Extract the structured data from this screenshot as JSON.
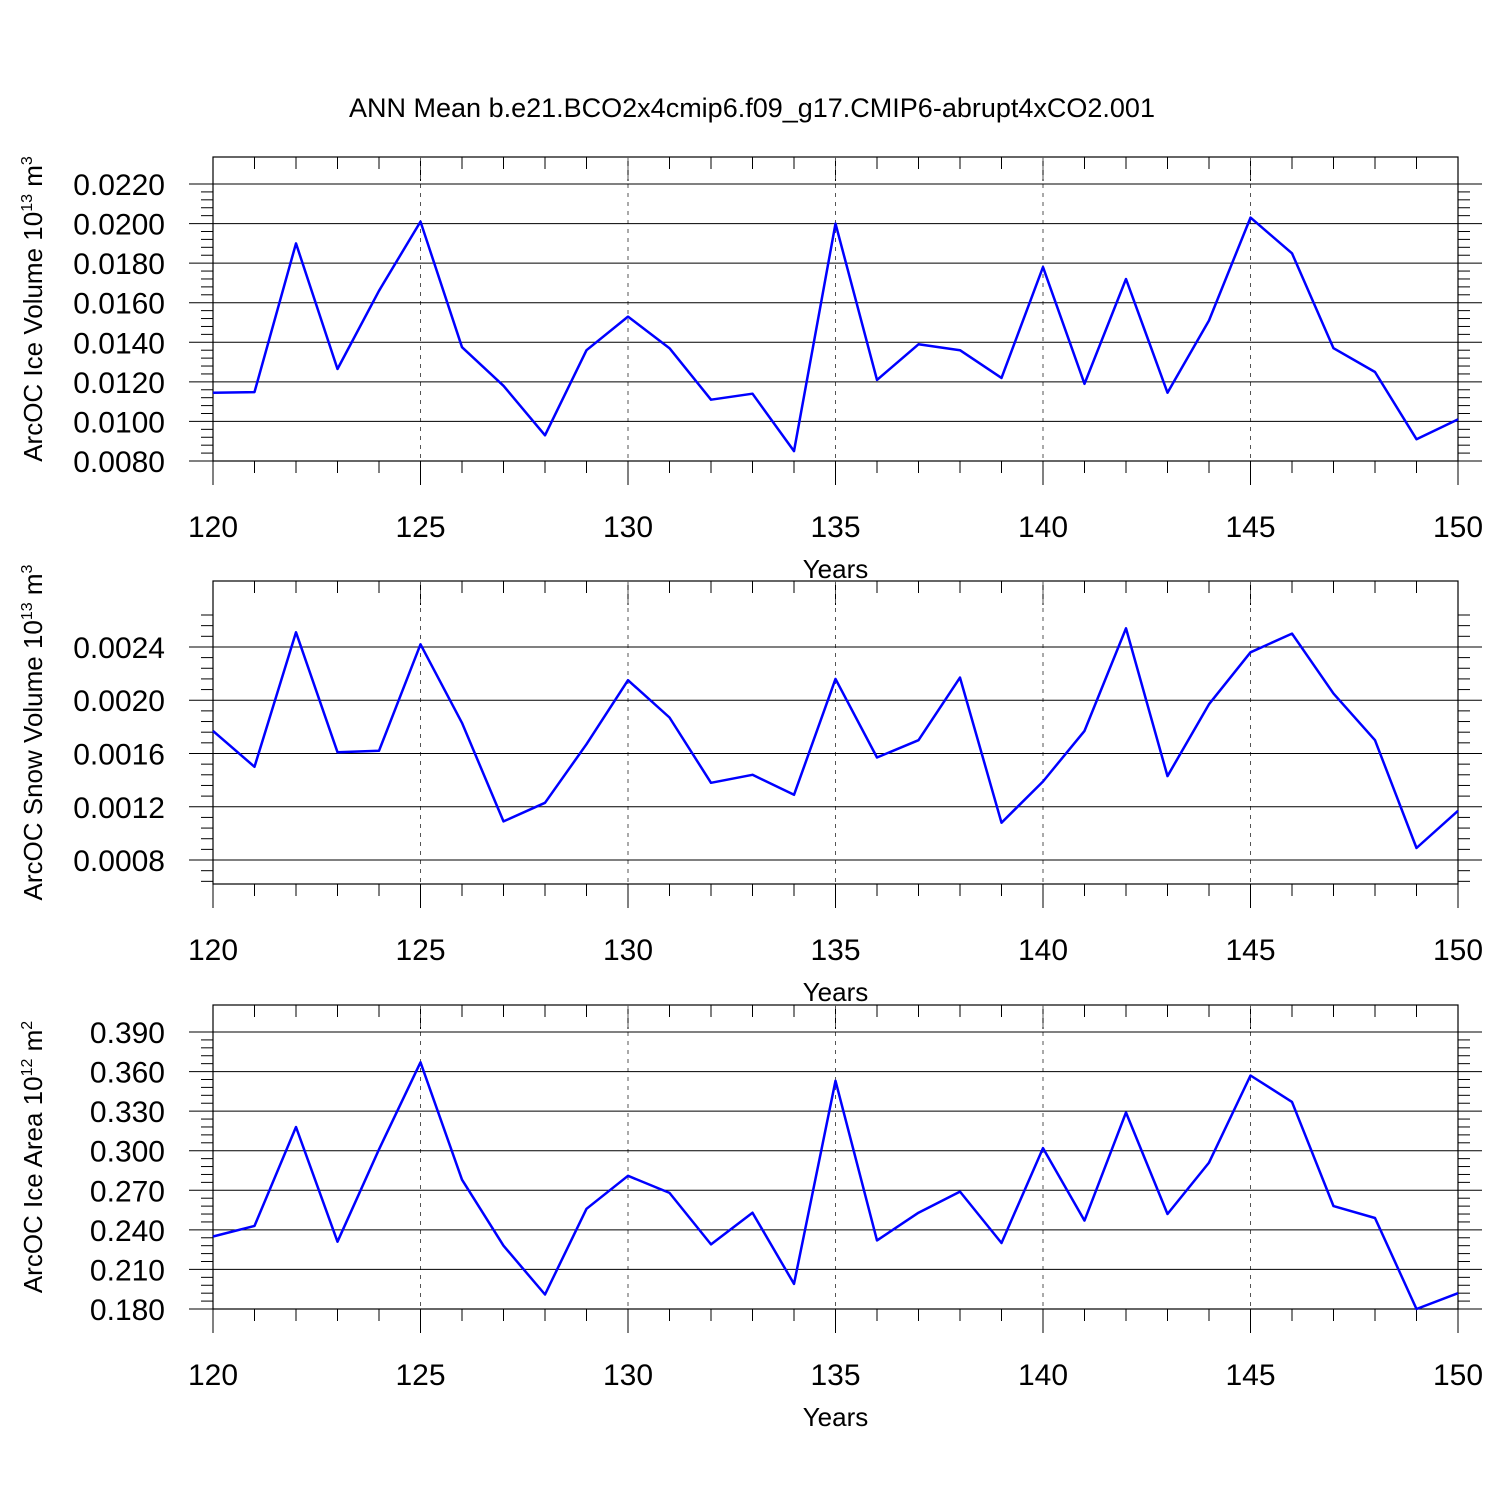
{
  "title": "ANN Mean b.e21.BCO2x4cmip6.f09_g17.CMIP6-abrupt4xCO2.001",
  "colors": {
    "series": "#0000ff",
    "axes": "#000000",
    "grid": "#555555"
  },
  "chart_data": [
    {
      "type": "line",
      "ylabel": "ArcOC Ice Volume 10",
      "ylabel_exp": "13",
      "ylabel_unit": " m",
      "ylabel_unit_exp": "3",
      "xlabel": "Years",
      "xlim": [
        120,
        150
      ],
      "ylim": [
        0.008,
        0.022
      ],
      "yticks": [
        0.008,
        0.01,
        0.012,
        0.014,
        0.016,
        0.018,
        0.02,
        0.022
      ],
      "ytick_labels": [
        "0.0080",
        "0.0100",
        "0.0120",
        "0.0140",
        "0.0160",
        "0.0180",
        "0.0200",
        "0.0220"
      ],
      "xticks": [
        120,
        125,
        130,
        135,
        140,
        145,
        150
      ],
      "xtick_labels": [
        "120",
        "125",
        "130",
        "135",
        "140",
        "145",
        "150"
      ],
      "grid_x": true,
      "x": [
        120,
        121,
        122,
        123,
        124,
        125,
        126,
        127,
        128,
        129,
        130,
        131,
        132,
        133,
        134,
        135,
        136,
        137,
        138,
        139,
        140,
        141,
        142,
        143,
        144,
        145,
        146,
        147,
        148,
        149,
        150
      ],
      "values": [
        0.01145,
        0.01148,
        0.019,
        0.01265,
        0.0166,
        0.0201,
        0.01375,
        0.0118,
        0.0093,
        0.0136,
        0.0153,
        0.0137,
        0.0111,
        0.0114,
        0.0085,
        0.02,
        0.0121,
        0.0139,
        0.0136,
        0.0122,
        0.0178,
        0.0119,
        0.0172,
        0.01145,
        0.0151,
        0.0203,
        0.0185,
        0.0137,
        0.0125,
        0.0091,
        0.0101
      ]
    },
    {
      "type": "line",
      "ylabel": "ArcOC Snow Volume 10",
      "ylabel_exp": "13",
      "ylabel_unit": " m",
      "ylabel_unit_exp": "3",
      "xlabel": "Years",
      "xlim": [
        120,
        150
      ],
      "ylim": [
        0.00062,
        0.0027
      ],
      "yticks": [
        0.0008,
        0.0012,
        0.0016,
        0.002,
        0.0024
      ],
      "ytick_labels": [
        "0.0008",
        "0.0012",
        "0.0016",
        "0.0020",
        "0.0024"
      ],
      "xticks": [
        120,
        125,
        130,
        135,
        140,
        145,
        150
      ],
      "xtick_labels": [
        "120",
        "125",
        "130",
        "135",
        "140",
        "145",
        "150"
      ],
      "grid_x": true,
      "x": [
        120,
        121,
        122,
        123,
        124,
        125,
        126,
        127,
        128,
        129,
        130,
        131,
        132,
        133,
        134,
        135,
        136,
        137,
        138,
        139,
        140,
        141,
        142,
        143,
        144,
        145,
        146,
        147,
        148,
        149,
        150
      ],
      "values": [
        0.00177,
        0.0015,
        0.00251,
        0.00161,
        0.00162,
        0.00242,
        0.00183,
        0.00109,
        0.00123,
        0.00167,
        0.00215,
        0.00187,
        0.00138,
        0.00144,
        0.00129,
        0.00216,
        0.00157,
        0.0017,
        0.00217,
        0.00108,
        0.00139,
        0.00177,
        0.00254,
        0.00143,
        0.00197,
        0.00236,
        0.0025,
        0.00205,
        0.0017,
        0.00089,
        0.00117
      ]
    },
    {
      "type": "line",
      "ylabel": "ArcOC Ice Area 10",
      "ylabel_exp": "12",
      "ylabel_unit": " m",
      "ylabel_unit_exp": "2",
      "xlabel": "Years",
      "xlim": [
        120,
        150
      ],
      "ylim": [
        0.18,
        0.39
      ],
      "yticks": [
        0.18,
        0.21,
        0.24,
        0.27,
        0.3,
        0.33,
        0.36,
        0.39
      ],
      "ytick_labels": [
        "0.180",
        "0.210",
        "0.240",
        "0.270",
        "0.300",
        "0.330",
        "0.360",
        "0.390"
      ],
      "xticks": [
        120,
        125,
        130,
        135,
        140,
        145,
        150
      ],
      "xtick_labels": [
        "120",
        "125",
        "130",
        "135",
        "140",
        "145",
        "150"
      ],
      "grid_x": true,
      "x": [
        120,
        121,
        122,
        123,
        124,
        125,
        126,
        127,
        128,
        129,
        130,
        131,
        132,
        133,
        134,
        135,
        136,
        137,
        138,
        139,
        140,
        141,
        142,
        143,
        144,
        145,
        146,
        147,
        148,
        149,
        150
      ],
      "values": [
        0.235,
        0.243,
        0.318,
        0.231,
        0.301,
        0.367,
        0.278,
        0.228,
        0.191,
        0.256,
        0.281,
        0.268,
        0.229,
        0.253,
        0.199,
        0.353,
        0.232,
        0.253,
        0.269,
        0.23,
        0.302,
        0.247,
        0.329,
        0.252,
        0.291,
        0.357,
        0.337,
        0.258,
        0.249,
        0.18,
        0.192
      ]
    }
  ]
}
